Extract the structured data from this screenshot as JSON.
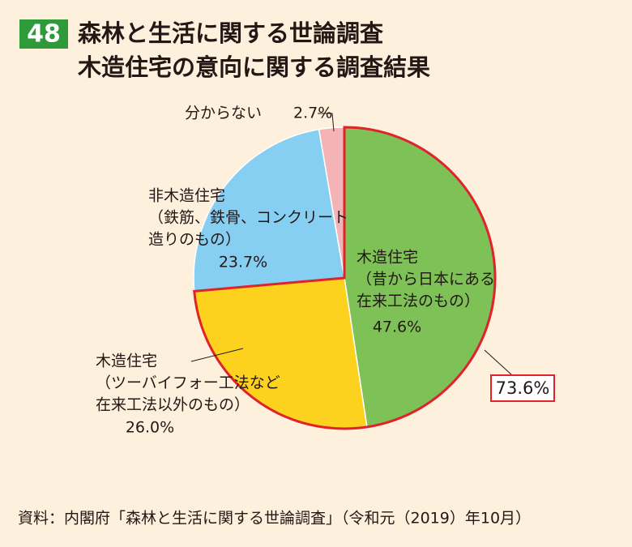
{
  "badge": "48",
  "chart_data": {
    "type": "pie",
    "title": [
      "森林と生活に関する世論調査",
      "木造住宅の意向に関する調査結果"
    ],
    "categories": [
      [
        "木造住宅",
        "（昔から日本にある",
        "在来工法のもの）"
      ],
      [
        "木造住宅",
        "（ツーバイフォー工法など",
        "在来工法以外のもの）"
      ],
      [
        "非木造住宅",
        "（鉄筋、鉄骨、コンクリート",
        "造りのもの）"
      ],
      [
        "分からない"
      ]
    ],
    "values": [
      47.6,
      26.0,
      23.7,
      2.7
    ],
    "value_labels": [
      "47.6%",
      "26.0%",
      "23.7%",
      "2.7%"
    ],
    "colors": [
      "#7dc157",
      "#fcd21e",
      "#86cff2",
      "#f4b4b6"
    ],
    "annotations": [
      {
        "value": 73.6,
        "label": "73.6%",
        "color": "#e0222a"
      }
    ]
  },
  "source": "資料：内閣府「森林と生活に関する世論調査」（令和元（2019）年10月）"
}
